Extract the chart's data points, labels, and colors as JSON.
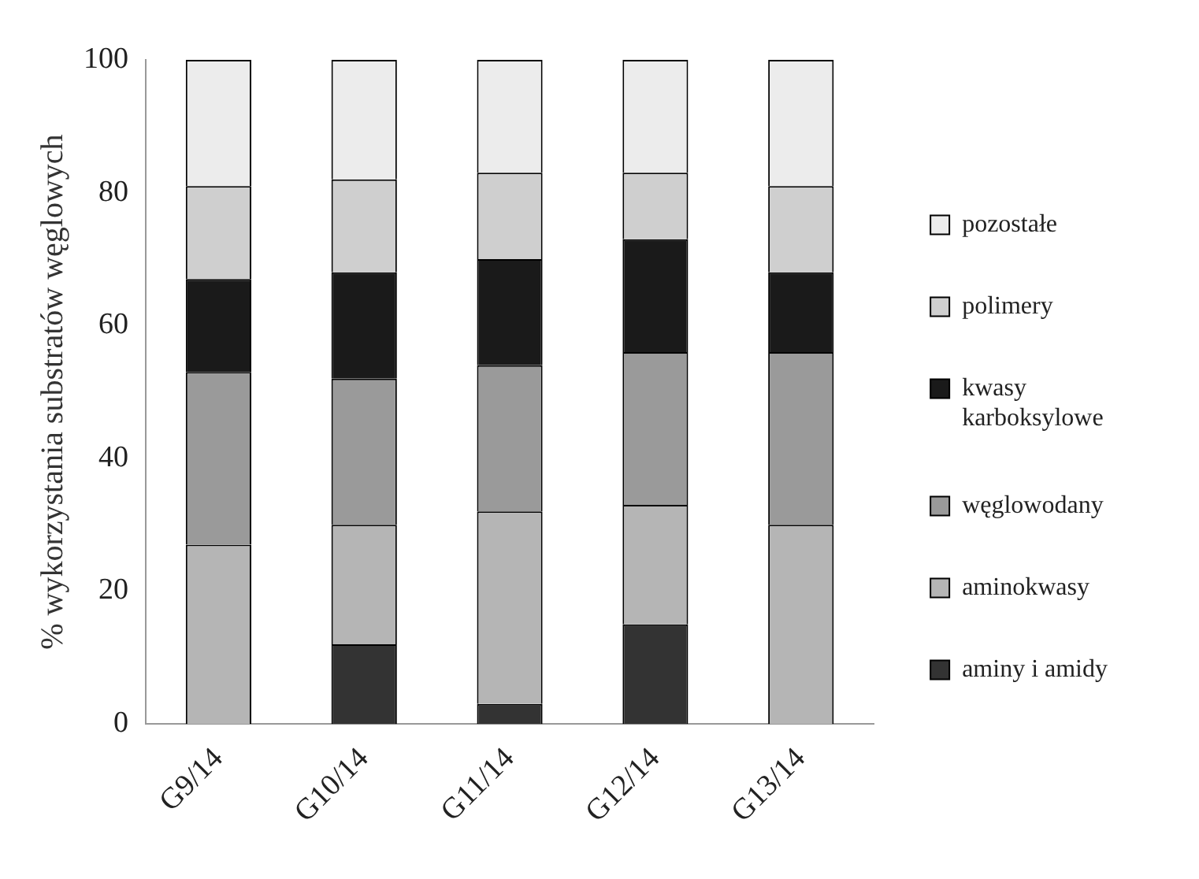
{
  "chart_data": {
    "type": "bar",
    "stacked": true,
    "categories": [
      "G9/14",
      "G10/14",
      "G11/14",
      "G12/14",
      "G13/14"
    ],
    "ylabel": "% wykorzystania substratów węglowych",
    "ylim": [
      0,
      100
    ],
    "yticks": [
      0,
      20,
      40,
      60,
      80,
      100
    ],
    "grid": false,
    "legend": "right",
    "series": [
      {
        "name": "aminy i amidy",
        "color": "#333333",
        "values": [
          0,
          12,
          3,
          15,
          0
        ]
      },
      {
        "name": "aminokwasy",
        "color": "#b5b5b5",
        "values": [
          27,
          18,
          29,
          18,
          30
        ]
      },
      {
        "name": "węglowodany",
        "color": "#9a9a9a",
        "values": [
          26,
          22,
          22,
          23,
          26
        ]
      },
      {
        "name": "kwasy karboksylowe",
        "color": "#1a1a1a",
        "values": [
          14,
          16,
          16,
          17,
          12
        ]
      },
      {
        "name": "polimery",
        "color": "#cfcfcf",
        "values": [
          14,
          14,
          13,
          10,
          13
        ]
      },
      {
        "name": "pozostałe",
        "color": "#ececec",
        "values": [
          19,
          18,
          17,
          17,
          19
        ]
      }
    ]
  }
}
